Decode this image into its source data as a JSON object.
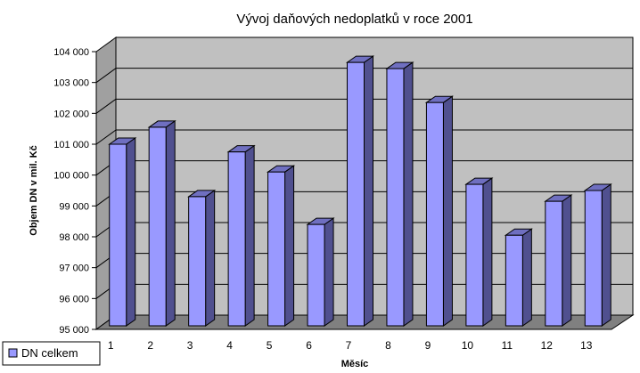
{
  "chart_data": {
    "type": "bar",
    "title": "Vývoj daňových nedoplatků v roce 2001",
    "xlabel": "Měsíc",
    "ylabel": "Objem DN v mil. Kč",
    "categories": [
      "1",
      "2",
      "3",
      "4",
      "5",
      "6",
      "7",
      "8",
      "9",
      "10",
      "11",
      "12",
      "13"
    ],
    "series": [
      {
        "name": "DN celkem",
        "values": [
          101000,
          101550,
          99300,
          100750,
          100100,
          98400,
          103650,
          103450,
          102350,
          99700,
          98050,
          99150,
          99500
        ]
      }
    ],
    "ylim": [
      95000,
      104000
    ],
    "yticks": [
      95000,
      96000,
      97000,
      98000,
      99000,
      100000,
      101000,
      102000,
      103000,
      104000
    ],
    "ytick_labels": [
      "95 000",
      "96 000",
      "97 000",
      "98 000",
      "99 000",
      "100 000",
      "101 000",
      "102 000",
      "103 000",
      "104 000"
    ],
    "grid": true,
    "legend_position": "bottom-left",
    "three_d": true,
    "colors": {
      "bar_front": "#9999FF",
      "bar_side": "#50508F",
      "bar_top": "#6F6FC0",
      "back_wall": "#C0C0C0",
      "floor": "#808080",
      "side_wall": "#A0A0A0"
    }
  }
}
